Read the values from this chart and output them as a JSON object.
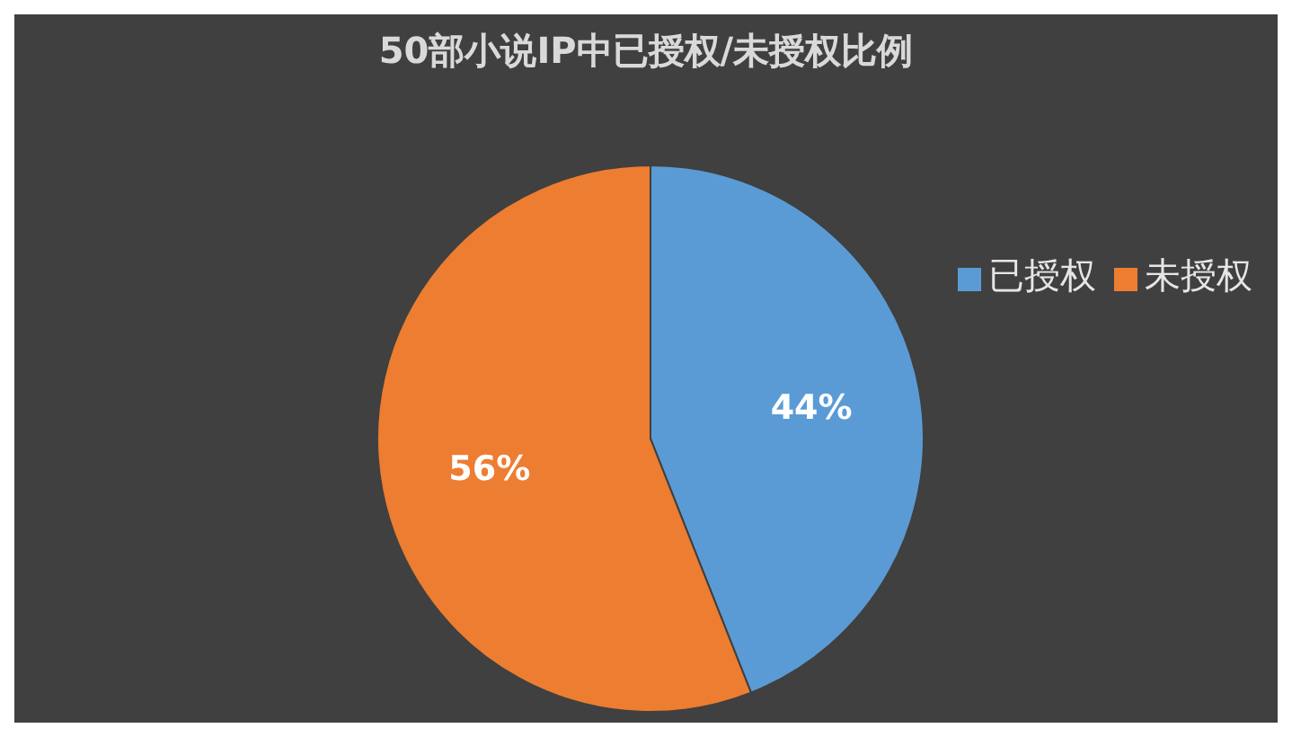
{
  "chart_data": {
    "type": "pie",
    "title": "50部小说IP中已授权/未授权比例",
    "categories": [
      "已授权",
      "未授权"
    ],
    "values": [
      44,
      56
    ],
    "colors": [
      "#5b9bd5",
      "#ed7d31"
    ],
    "value_labels": [
      "44%",
      "56%"
    ],
    "legend": "top right"
  }
}
